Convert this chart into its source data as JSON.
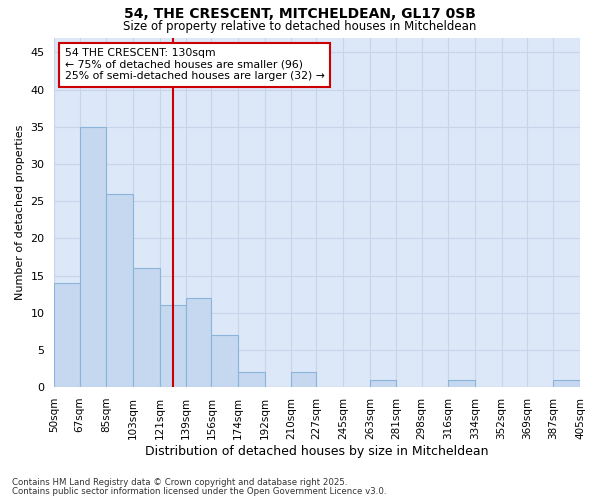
{
  "title1": "54, THE CRESCENT, MITCHELDEAN, GL17 0SB",
  "title2": "Size of property relative to detached houses in Mitcheldean",
  "xlabel": "Distribution of detached houses by size in Mitcheldean",
  "ylabel": "Number of detached properties",
  "bin_labels": [
    "50sqm",
    "67sqm",
    "85sqm",
    "103sqm",
    "121sqm",
    "139sqm",
    "156sqm",
    "174sqm",
    "192sqm",
    "210sqm",
    "227sqm",
    "245sqm",
    "263sqm",
    "281sqm",
    "298sqm",
    "316sqm",
    "334sqm",
    "352sqm",
    "369sqm",
    "387sqm",
    "405sqm"
  ],
  "bin_edges": [
    50,
    67,
    85,
    103,
    121,
    139,
    156,
    174,
    192,
    210,
    227,
    245,
    263,
    281,
    298,
    316,
    334,
    352,
    369,
    387,
    405
  ],
  "bar_values": [
    14,
    35,
    26,
    16,
    11,
    12,
    7,
    2,
    0,
    2,
    0,
    0,
    1,
    0,
    0,
    1,
    0,
    0,
    0,
    1
  ],
  "bar_color": "#c5d8f0",
  "bar_edge_color": "#8ab4d8",
  "vline_x": 130,
  "vline_color": "#cc0000",
  "ylim": [
    0,
    47
  ],
  "yticks": [
    0,
    5,
    10,
    15,
    20,
    25,
    30,
    35,
    40,
    45
  ],
  "annotation_title": "54 THE CRESCENT: 130sqm",
  "annotation_line1": "← 75% of detached houses are smaller (96)",
  "annotation_line2": "25% of semi-detached houses are larger (32) →",
  "annotation_box_color": "#cc0000",
  "annotation_bg": "#ffffff",
  "grid_color": "#c8d4e8",
  "bg_color": "#ffffff",
  "plot_bg_color": "#dce8f8",
  "footnote1": "Contains HM Land Registry data © Crown copyright and database right 2025.",
  "footnote2": "Contains public sector information licensed under the Open Government Licence v3.0."
}
